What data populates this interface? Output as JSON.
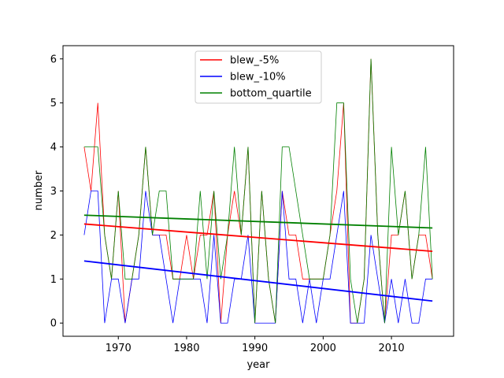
{
  "chart_data": {
    "type": "line",
    "xlabel": "year",
    "ylabel": "number",
    "xlim": [
      1961.9,
      2019.1
    ],
    "ylim": [
      -0.3,
      6.3
    ],
    "x_ticks": [
      1970,
      1980,
      1990,
      2000,
      2010
    ],
    "y_ticks": [
      0,
      1,
      2,
      3,
      4,
      5,
      6
    ],
    "x": [
      1965,
      1966,
      1967,
      1968,
      1969,
      1970,
      1971,
      1972,
      1973,
      1974,
      1975,
      1976,
      1977,
      1978,
      1979,
      1980,
      1981,
      1982,
      1983,
      1984,
      1985,
      1986,
      1987,
      1988,
      1989,
      1990,
      1991,
      1992,
      1993,
      1994,
      1995,
      1996,
      1997,
      1998,
      1999,
      2000,
      2001,
      2002,
      2003,
      2004,
      2005,
      2006,
      2007,
      2008,
      2009,
      2010,
      2011,
      2012,
      2013,
      2014,
      2015,
      2016
    ],
    "series": [
      {
        "name": "blew_-5%",
        "color": "#ff0000",
        "values": [
          4,
          3,
          5,
          2,
          1,
          3,
          0,
          1,
          2,
          4,
          2,
          2,
          2,
          1,
          1,
          2,
          1,
          2,
          2,
          3,
          0,
          2,
          3,
          2,
          4,
          0,
          3,
          1,
          0,
          3,
          2,
          2,
          1,
          1,
          1,
          1,
          2,
          3,
          5,
          0,
          0,
          1,
          6,
          2,
          0,
          2,
          2,
          3,
          1,
          2,
          2,
          1
        ],
        "trend": [
          2.25,
          1.63
        ]
      },
      {
        "name": "blew_-10%",
        "color": "#0000ff",
        "values": [
          2,
          3,
          3,
          0,
          1,
          1,
          0,
          1,
          1,
          3,
          2,
          2,
          1,
          0,
          1,
          1,
          1,
          1,
          0,
          2,
          0,
          0,
          1,
          1,
          2,
          0,
          0,
          0,
          0,
          3,
          1,
          1,
          0,
          1,
          0,
          1,
          1,
          2,
          3,
          0,
          0,
          0,
          2,
          1,
          0,
          1,
          0,
          1,
          0,
          0,
          1,
          1
        ],
        "trend": [
          1.41,
          0.5
        ]
      },
      {
        "name": "bottom_quartile",
        "color": "#008000",
        "values": [
          4,
          4,
          4,
          2,
          1,
          3,
          1,
          1,
          2,
          4,
          2,
          3,
          3,
          1,
          1,
          1,
          1,
          3,
          1,
          3,
          1,
          2,
          4,
          2,
          4,
          0,
          3,
          1,
          0,
          4,
          4,
          3,
          2,
          1,
          1,
          1,
          2,
          5,
          5,
          1,
          0,
          1,
          6,
          2,
          0,
          4,
          2,
          3,
          1,
          2,
          4,
          1
        ],
        "trend": [
          2.45,
          2.16
        ]
      }
    ],
    "legend_position": "upper-center"
  }
}
